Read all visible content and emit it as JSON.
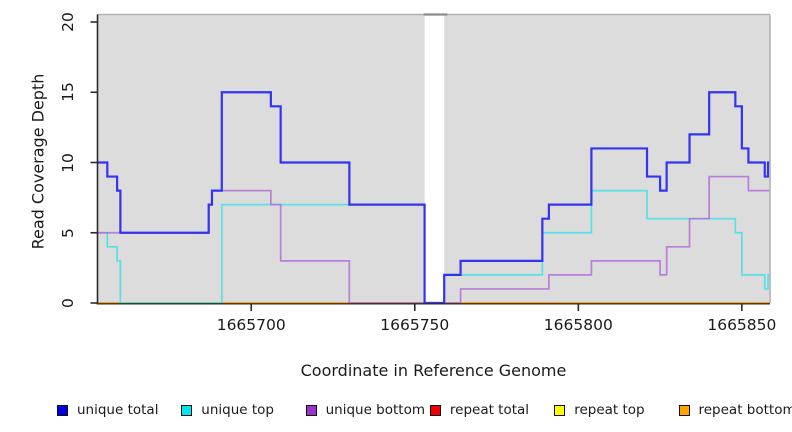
{
  "chart_data": {
    "type": "line",
    "subtype": "step-coverage",
    "title": "",
    "xlabel": "Coordinate in Reference Genome",
    "ylabel": "Read Coverage Depth",
    "xlim": [
      1665653,
      1665858.6
    ],
    "ylim": [
      0,
      20
    ],
    "x_ticks": [
      1665700,
      1665750,
      1665800,
      1665850
    ],
    "y_ticks": [
      0,
      5,
      10,
      15,
      20
    ],
    "grid": false,
    "legend_position": "bottom",
    "plot_background": "#dcdcdc",
    "gap_region": {
      "x_start": 1665753,
      "x_end": 1665759
    },
    "series": [
      {
        "name": "repeat total",
        "color": "#ee1111",
        "width": 2,
        "opacity": 1,
        "steps": [
          [
            1665653,
            0
          ]
        ]
      },
      {
        "name": "repeat top",
        "color": "#ffff00",
        "width": 2,
        "opacity": 1,
        "steps": [
          [
            1665653,
            0
          ]
        ]
      },
      {
        "name": "repeat bottom",
        "color": "#ffa500",
        "width": 2,
        "opacity": 1,
        "steps": [
          [
            1665653,
            0
          ]
        ]
      },
      {
        "name": "unique top",
        "color": "#40e0e8",
        "width": 1.7,
        "opacity": 0.85,
        "steps": [
          [
            1665653,
            5
          ],
          [
            1665656,
            4
          ],
          [
            1665659,
            3
          ],
          [
            1665660,
            0
          ],
          [
            1665691,
            7
          ],
          [
            1665753,
            0
          ],
          [
            1665759,
            2
          ],
          [
            1665789,
            5
          ],
          [
            1665804,
            8
          ],
          [
            1665821,
            6
          ],
          [
            1665848,
            5
          ],
          [
            1665850,
            2
          ],
          [
            1665857,
            1
          ],
          [
            1665858,
            2
          ]
        ]
      },
      {
        "name": "unique bottom",
        "color": "#b06fd8",
        "width": 1.7,
        "opacity": 0.85,
        "steps": [
          [
            1665653,
            5
          ],
          [
            1665687,
            7
          ],
          [
            1665688,
            8
          ],
          [
            1665706,
            7
          ],
          [
            1665709,
            3
          ],
          [
            1665730,
            0
          ],
          [
            1665764,
            1
          ],
          [
            1665791,
            2
          ],
          [
            1665804,
            3
          ],
          [
            1665825,
            2
          ],
          [
            1665827,
            4
          ],
          [
            1665834,
            6
          ],
          [
            1665840,
            9
          ],
          [
            1665852,
            8
          ]
        ]
      },
      {
        "name": "unique total",
        "color": "#3333f0",
        "width": 2.2,
        "opacity": 1,
        "steps": [
          [
            1665653,
            10
          ],
          [
            1665656,
            9
          ],
          [
            1665659,
            8
          ],
          [
            1665660,
            5
          ],
          [
            1665687,
            7
          ],
          [
            1665688,
            8
          ],
          [
            1665691,
            15
          ],
          [
            1665706,
            14
          ],
          [
            1665709,
            10
          ],
          [
            1665730,
            7
          ],
          [
            1665753,
            0
          ],
          [
            1665759,
            2
          ],
          [
            1665764,
            3
          ],
          [
            1665789,
            6
          ],
          [
            1665791,
            7
          ],
          [
            1665804,
            11
          ],
          [
            1665821,
            9
          ],
          [
            1665825,
            8
          ],
          [
            1665827,
            10
          ],
          [
            1665834,
            12
          ],
          [
            1665840,
            15
          ],
          [
            1665848,
            14
          ],
          [
            1665850,
            11
          ],
          [
            1665852,
            10
          ],
          [
            1665857,
            9
          ],
          [
            1665858,
            10
          ]
        ]
      }
    ],
    "legend": [
      {
        "label": "unique total",
        "color": "#0000dd"
      },
      {
        "label": "unique top",
        "color": "#00e5ee"
      },
      {
        "label": "unique bottom",
        "color": "#9933cc"
      },
      {
        "label": "repeat total",
        "color": "#ee0000"
      },
      {
        "label": "repeat top",
        "color": "#ffff00"
      },
      {
        "label": "repeat bottom",
        "color": "#ffa500"
      }
    ]
  }
}
